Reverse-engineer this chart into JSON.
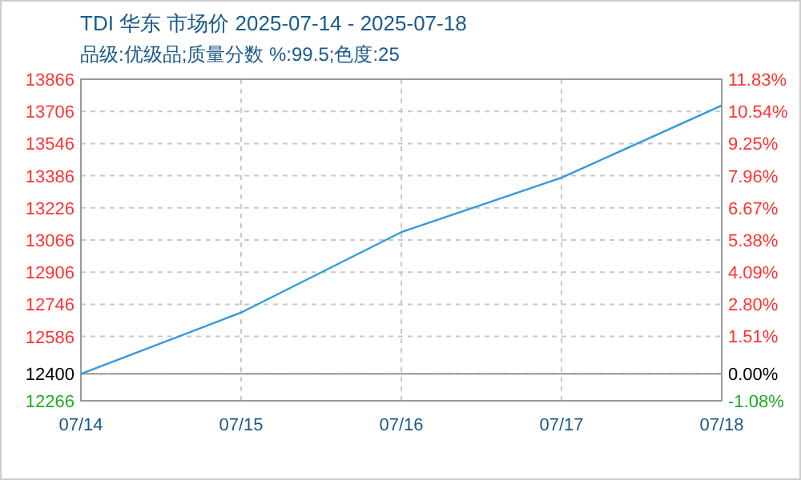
{
  "chart_data": {
    "type": "line",
    "title": "TDI 华东 市场价 2025-07-14 - 2025-07-18",
    "subtitle": "品级:优级品;质量分数 %:99.5;色度:25",
    "categories": [
      "07/14",
      "07/15",
      "07/16",
      "07/17",
      "07/18"
    ],
    "series": [
      {
        "color": "#3399dd",
        "values": [
          12400,
          12705,
          13105,
          13376,
          13735
        ]
      }
    ],
    "ylim": [
      12266,
      13866
    ],
    "yticks": [
      12266,
      12400,
      12586,
      12746,
      12906,
      13066,
      13226,
      13386,
      13546,
      13706,
      13866
    ],
    "y2lim": [
      -1.08,
      11.83
    ],
    "y2ticks": [
      {
        "value": -1.08,
        "label": "-1.08%"
      },
      {
        "value": 0,
        "label": "0.00%"
      },
      {
        "value": 1.51,
        "label": "1.51%"
      },
      {
        "value": 2.8,
        "label": "2.80%"
      },
      {
        "value": 4.09,
        "label": "4.09%"
      },
      {
        "value": 5.38,
        "label": "5.38%"
      },
      {
        "value": 6.67,
        "label": "6.67%"
      },
      {
        "value": 7.96,
        "label": "7.96%"
      },
      {
        "value": 9.25,
        "label": "9.25%"
      },
      {
        "value": 10.54,
        "label": "10.54%"
      },
      {
        "value": 11.83,
        "label": "11.83%"
      }
    ],
    "ref_lines": [
      {
        "axis": "y",
        "value": 12400,
        "color": "#999999"
      }
    ],
    "grid": true,
    "marker": "none",
    "line_style": "solid"
  }
}
